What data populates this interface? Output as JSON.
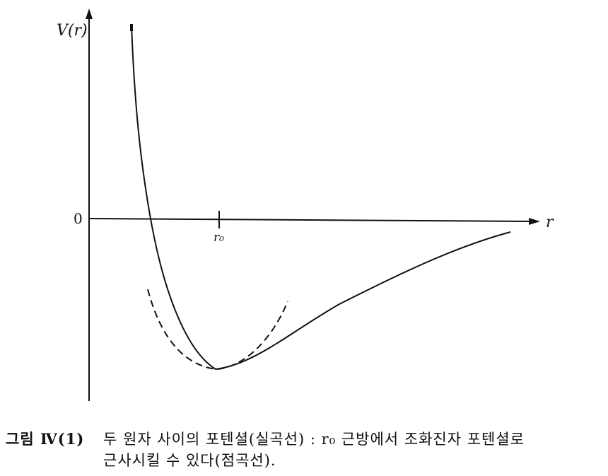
{
  "figure": {
    "y_axis_label": "V(r)",
    "x_axis_label": "r",
    "origin_label": "0",
    "marked_point_label": "r₀",
    "curves": [
      {
        "name": "두 원자 사이의 포텐셜",
        "style": "solid"
      },
      {
        "name": "조화진자 포텐셜",
        "style": "dashed"
      }
    ]
  },
  "caption": {
    "label": "그림 Ⅳ(1)",
    "line1": "두 원자 사이의 포텐셜(실곡선) : r₀ 근방에서 조화진자 포텐셜로",
    "line2": "근사시킬 수 있다(점곡선)."
  },
  "colors": {
    "ink": "#111111",
    "background": "#ffffff"
  }
}
